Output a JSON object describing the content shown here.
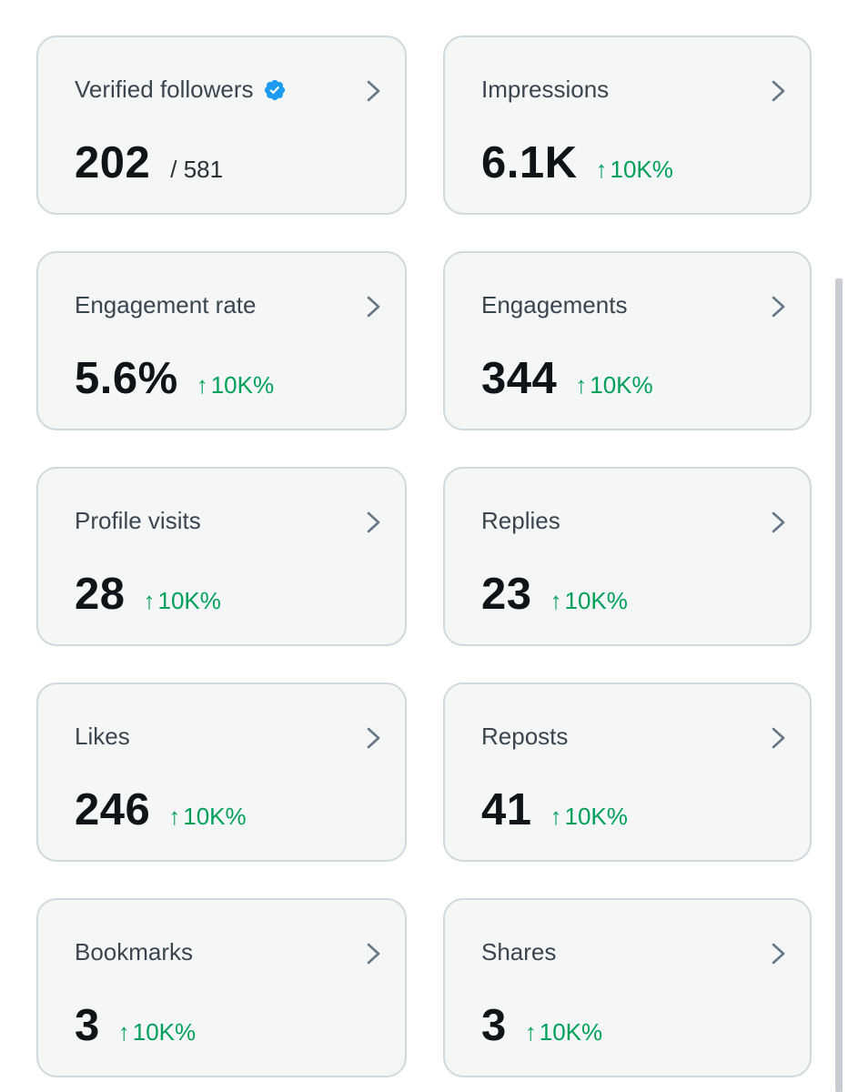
{
  "cards": [
    {
      "title": "Verified followers",
      "value": "202",
      "total": "/ 581",
      "change_arrow": "↑",
      "change": "",
      "icon": "verified-badge-icon",
      "accent": "#1d9bf0"
    },
    {
      "title": "Impressions",
      "value": "6.1K",
      "change_arrow": "↑",
      "change": "10K%"
    },
    {
      "title": "Engagement rate",
      "value": "5.6%",
      "change_arrow": "↑",
      "change": "10K%"
    },
    {
      "title": "Engagements",
      "value": "344",
      "change_arrow": "↑",
      "change": "10K%"
    },
    {
      "title": "Profile visits",
      "value": "28",
      "change_arrow": "↑",
      "change": "10K%"
    },
    {
      "title": "Replies",
      "value": "23",
      "change_arrow": "↑",
      "change": "10K%"
    },
    {
      "title": "Likes",
      "value": "246",
      "change_arrow": "↑",
      "change": "10K%"
    },
    {
      "title": "Reposts",
      "value": "41",
      "change_arrow": "↑",
      "change": "10K%"
    },
    {
      "title": "Bookmarks",
      "value": "3",
      "change_arrow": "↑",
      "change": "10K%"
    },
    {
      "title": "Shares",
      "value": "3",
      "change_arrow": "↑",
      "change": "10K%"
    }
  ],
  "colors": {
    "positive_change": "#00a05c",
    "card_background": "#f5f7f7",
    "card_border": "#cfd9de"
  }
}
